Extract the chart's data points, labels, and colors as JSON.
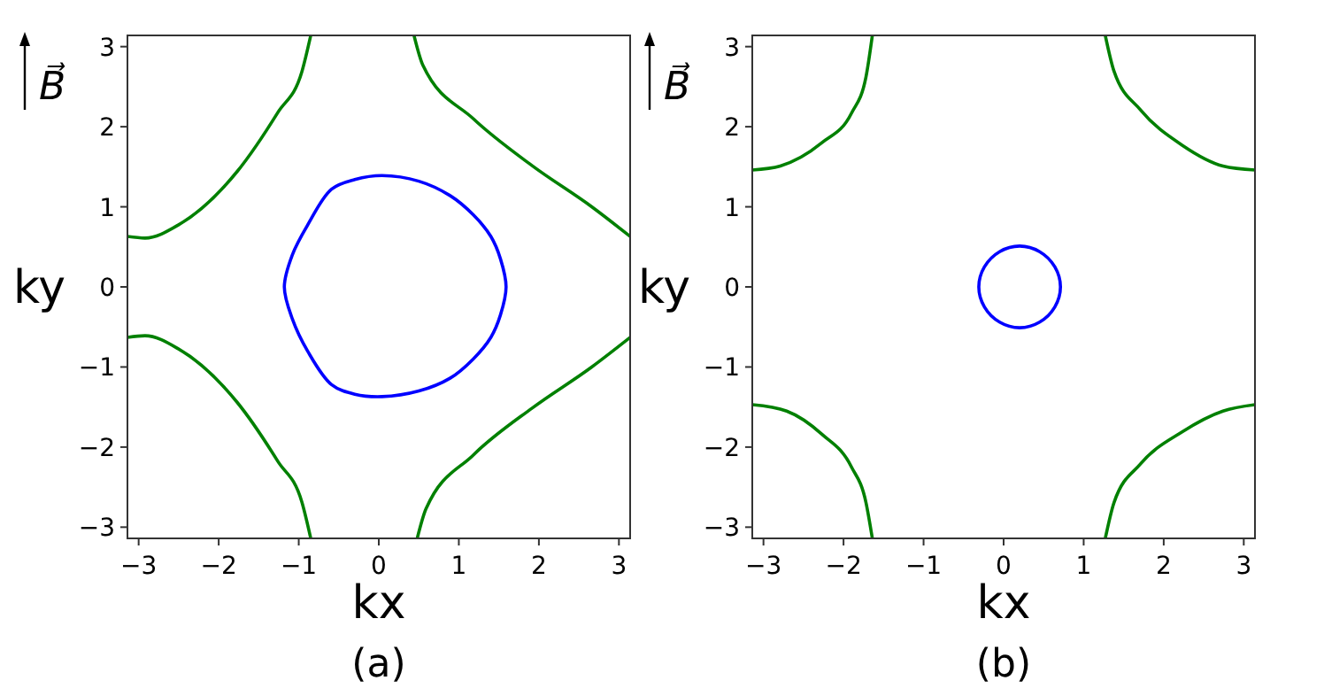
{
  "chart_data": [
    {
      "type": "line",
      "xlabel": "kx",
      "ylabel": "ky",
      "annotations": [
        "B⃗",
        "(a)"
      ],
      "xlim": [
        -3.14,
        3.14
      ],
      "ylim": [
        -3.14,
        3.14
      ],
      "xticks": [
        -3,
        -2,
        -1,
        0,
        1,
        2,
        3
      ],
      "yticks": [
        -3,
        -2,
        -1,
        0,
        1,
        2,
        3
      ],
      "marker": "none",
      "line_style": "solid",
      "series": [
        {
          "color": "#008000",
          "x": [
            -3.14,
            -2.92,
            -2.51,
            -1.77,
            -1.26,
            -0.96,
            -0.85
          ],
          "values": [
            0.63,
            0.61,
            0.77,
            1.44,
            2.18,
            2.69,
            3.14
          ]
        },
        {
          "color": "#008000",
          "x": [
            0.44,
            0.55,
            1.18,
            1.92,
            2.66,
            3.14
          ],
          "values": [
            3.14,
            2.77,
            2.1,
            1.51,
            1.0,
            0.63
          ]
        },
        {
          "color": "#008000",
          "x": [
            -3.14,
            -2.92,
            -2.51,
            -1.77,
            -1.26,
            -0.96,
            -0.85
          ],
          "values": [
            -0.63,
            -0.61,
            -0.77,
            -1.44,
            -2.18,
            -2.69,
            -3.14
          ]
        },
        {
          "color": "#008000",
          "x": [
            0.48,
            0.59,
            1.18,
            1.92,
            2.66,
            3.14
          ],
          "values": [
            -3.14,
            -2.77,
            -2.1,
            -1.51,
            -1.0,
            -0.63
          ]
        }
      ]
    },
    {
      "type": "line",
      "xlabel": "kx",
      "ylabel": "ky",
      "annotations": [
        "B⃗",
        "(b)"
      ],
      "xlim": [
        -3.14,
        3.14
      ],
      "ylim": [
        -3.14,
        3.14
      ],
      "xticks": [
        -3,
        -2,
        -1,
        0,
        1,
        2,
        3
      ],
      "yticks": [
        -3,
        -2,
        -1,
        0,
        1,
        2,
        3
      ],
      "marker": "none",
      "line_style": "solid",
      "series": [
        {
          "color": "#008000",
          "x": [
            -3.14,
            -2.79,
            -2.27,
            -1.9,
            -1.72,
            -1.64
          ],
          "values": [
            1.46,
            1.51,
            1.8,
            2.17,
            2.62,
            3.14
          ]
        },
        {
          "color": "#008000",
          "x": [
            1.27,
            1.38,
            1.71,
            2.23,
            2.74,
            3.14
          ],
          "values": [
            3.14,
            2.69,
            2.21,
            1.77,
            1.51,
            1.46
          ]
        },
        {
          "color": "#008000",
          "x": [
            -3.14,
            -2.71,
            -2.27,
            -1.9,
            -1.72,
            -1.64
          ],
          "values": [
            -1.47,
            -1.55,
            -1.84,
            -2.25,
            -2.69,
            -3.14
          ]
        },
        {
          "color": "#008000",
          "x": [
            1.27,
            1.38,
            1.71,
            2.23,
            2.74,
            3.14
          ],
          "values": [
            -3.14,
            -2.69,
            -2.21,
            -1.81,
            -1.55,
            -1.47
          ]
        }
      ]
    }
  ]
}
